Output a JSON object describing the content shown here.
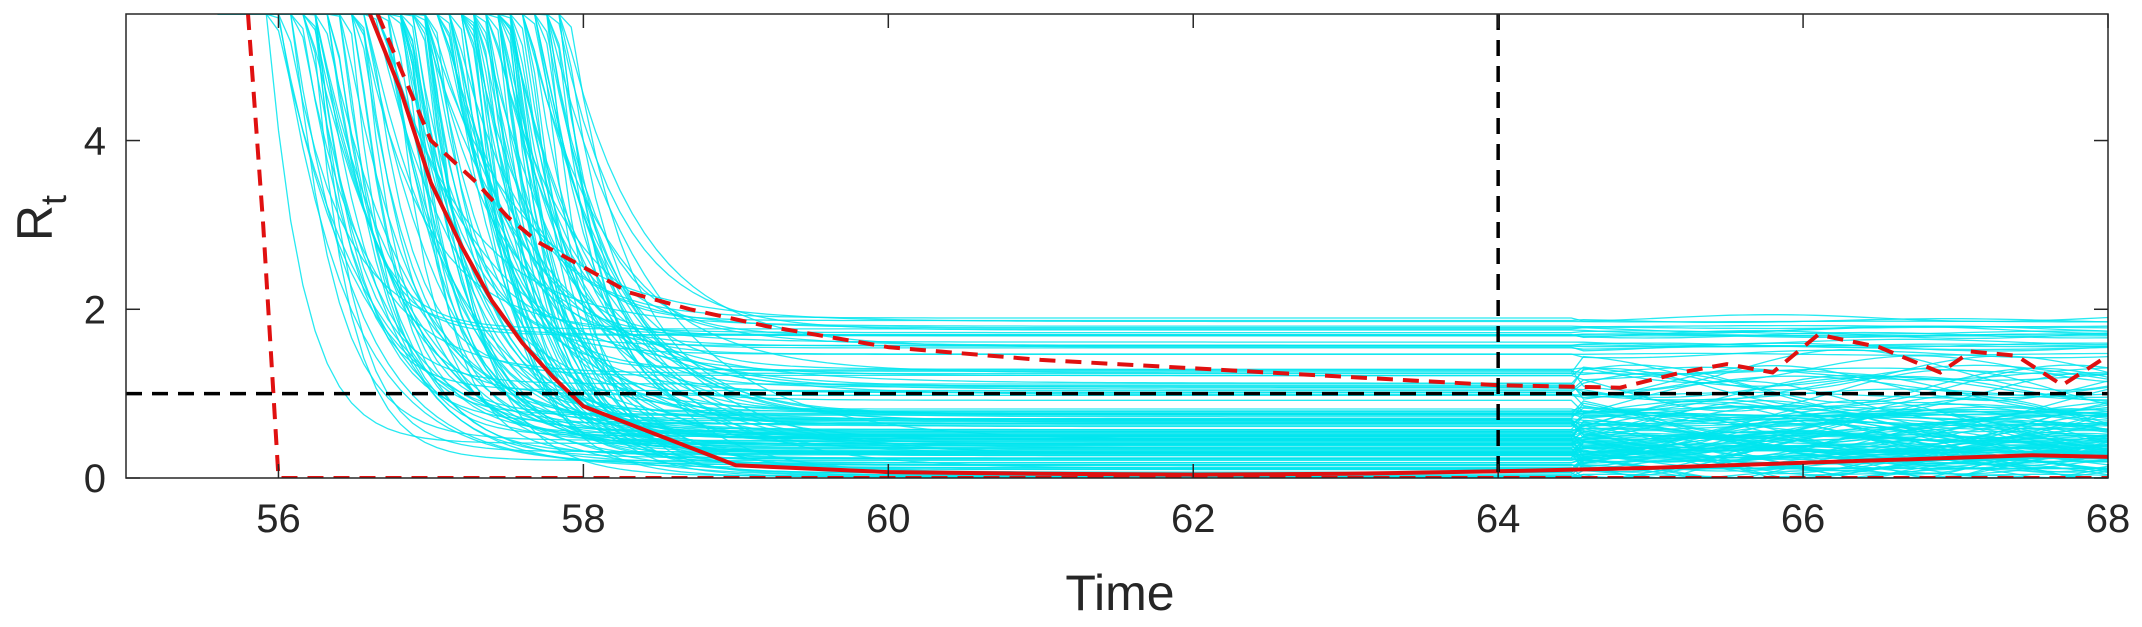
{
  "chart_data": {
    "type": "line",
    "xlabel": "Time",
    "ylabel": "R",
    "ylabel_subscript": "t",
    "xlim": [
      55,
      68
    ],
    "ylim": [
      0,
      5.5
    ],
    "xticks": [
      56,
      58,
      60,
      62,
      64,
      66,
      68
    ],
    "yticks": [
      0,
      2,
      4
    ],
    "grid": false,
    "colors": {
      "ensemble": "#00e5ee",
      "median": "#e01010",
      "bounds": "#e01010",
      "reference": "#000000"
    },
    "reference_lines": [
      {
        "orientation": "vertical",
        "x": 64,
        "style": "dashed"
      },
      {
        "orientation": "horizontal",
        "y": 1,
        "style": "dashed"
      }
    ],
    "ensemble": {
      "member_count_drawn": 150,
      "note_visible": "many cyan trajectories decaying from high values near t=56-57 to plateaus between 0 and about 1.9"
    },
    "series": [
      {
        "style": "solid",
        "points": [
          [
            56.6,
            5.5
          ],
          [
            56.8,
            4.6
          ],
          [
            57.0,
            3.5
          ],
          [
            57.2,
            2.75
          ],
          [
            57.4,
            2.1
          ],
          [
            57.6,
            1.6
          ],
          [
            57.8,
            1.2
          ],
          [
            58.0,
            0.85
          ],
          [
            58.5,
            0.5
          ],
          [
            59.0,
            0.15
          ],
          [
            60.0,
            0.07
          ],
          [
            61.0,
            0.05
          ],
          [
            62.0,
            0.04
          ],
          [
            63.0,
            0.05
          ],
          [
            64.0,
            0.08
          ],
          [
            65.0,
            0.12
          ],
          [
            66.0,
            0.18
          ],
          [
            67.0,
            0.24
          ],
          [
            67.5,
            0.27
          ],
          [
            68.0,
            0.25
          ]
        ]
      },
      {
        "style": "dashed",
        "points": [
          [
            56.65,
            5.5
          ],
          [
            57.0,
            4.0
          ],
          [
            57.3,
            3.5
          ],
          [
            57.5,
            3.1
          ],
          [
            57.7,
            2.8
          ],
          [
            58.0,
            2.5
          ],
          [
            58.3,
            2.2
          ],
          [
            58.7,
            2.0
          ],
          [
            59.2,
            1.8
          ],
          [
            60.0,
            1.55
          ],
          [
            61.0,
            1.4
          ],
          [
            62.0,
            1.3
          ],
          [
            63.0,
            1.2
          ],
          [
            64.0,
            1.1
          ],
          [
            64.8,
            1.07
          ],
          [
            65.2,
            1.25
          ],
          [
            65.5,
            1.35
          ],
          [
            65.8,
            1.25
          ],
          [
            66.1,
            1.7
          ],
          [
            66.5,
            1.55
          ],
          [
            66.9,
            1.25
          ],
          [
            67.1,
            1.5
          ],
          [
            67.4,
            1.45
          ],
          [
            67.7,
            1.1
          ],
          [
            68.0,
            1.45
          ]
        ]
      },
      {
        "style": "dashed",
        "points": [
          [
            55.8,
            5.5
          ],
          [
            55.9,
            3.0
          ],
          [
            56.0,
            0.0
          ],
          [
            68.0,
            0.0
          ]
        ]
      }
    ]
  }
}
